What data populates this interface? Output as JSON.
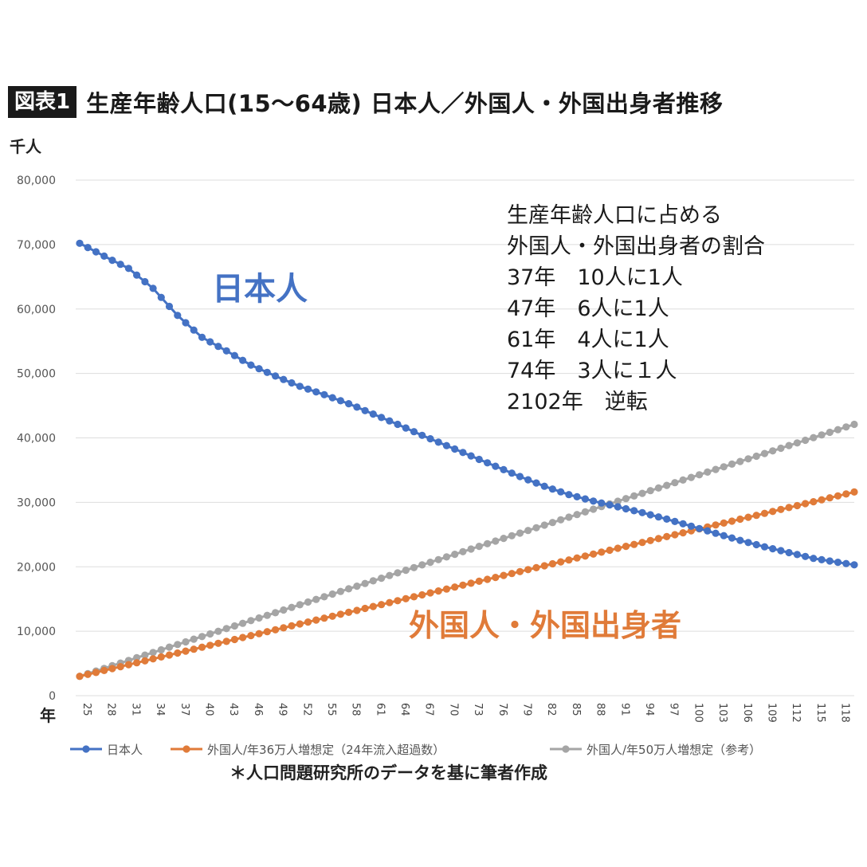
{
  "figure_label": "図表1",
  "title": "生産年齢人口(15〜64歳) 日本人／外国人・外国出身者推移",
  "footnote": "＊人口問題研究所のデータを基に筆者作成",
  "colors": {
    "japanese": "#4472C4",
    "foreign36": "#E07B39",
    "foreign50": "#A5A5A5",
    "grid": "#dddddd"
  },
  "chart_data": {
    "type": "line",
    "ylabel": "千人",
    "xlabel": "年",
    "ylim": [
      0,
      80000
    ],
    "yticks": [
      "0",
      "10,000",
      "20,000",
      "30,000",
      "40,000",
      "50,000",
      "60,000",
      "70,000",
      "80,000"
    ],
    "xlim": [
      25,
      120
    ],
    "xticks": [
      "25",
      "28",
      "31",
      "34",
      "37",
      "40",
      "43",
      "46",
      "49",
      "52",
      "55",
      "58",
      "61",
      "64",
      "67",
      "70",
      "73",
      "76",
      "79",
      "82",
      "85",
      "88",
      "91",
      "94",
      "97",
      "100",
      "103",
      "106",
      "109",
      "112",
      "115",
      "118"
    ],
    "grid": true,
    "legend_position": "bottom",
    "series": [
      {
        "name": "日本人",
        "color": "#4472C4",
        "points": [
          [
            25,
            70200
          ],
          [
            28,
            68200
          ],
          [
            31,
            66300
          ],
          [
            34,
            63200
          ],
          [
            37,
            59000
          ],
          [
            40,
            55600
          ],
          [
            43,
            53500
          ],
          [
            46,
            51300
          ],
          [
            49,
            49600
          ],
          [
            52,
            48000
          ],
          [
            55,
            46700
          ],
          [
            58,
            45300
          ],
          [
            61,
            43700
          ],
          [
            64,
            42100
          ],
          [
            67,
            40400
          ],
          [
            70,
            38800
          ],
          [
            73,
            37200
          ],
          [
            76,
            35600
          ],
          [
            79,
            34000
          ],
          [
            82,
            32500
          ],
          [
            85,
            31200
          ],
          [
            88,
            30200
          ],
          [
            91,
            29300
          ],
          [
            94,
            28400
          ],
          [
            97,
            27400
          ],
          [
            100,
            26300
          ],
          [
            103,
            25200
          ],
          [
            106,
            24100
          ],
          [
            109,
            23100
          ],
          [
            112,
            22200
          ],
          [
            115,
            21300
          ],
          [
            120,
            20300
          ]
        ]
      },
      {
        "name": "外国人/年36万人増想定（24年流入超過数）",
        "color": "#E07B39",
        "points": [
          [
            25,
            3000
          ],
          [
            120,
            31600
          ]
        ]
      },
      {
        "name": "外国人/年50万人増想定（参考）",
        "color": "#A5A5A5",
        "points": [
          [
            25,
            3000
          ],
          [
            120,
            42100
          ]
        ]
      }
    ],
    "annotations": {
      "japanese_label": "日本人",
      "foreign_label": "外国人・外国出身者",
      "ratio_box": [
        "生産年齢人口に占める",
        "外国人・外国出身者の割合",
        "37年　10人に1人",
        "47年　6人に1人",
        "61年　4人に1人",
        "74年　3人に１人",
        "2102年　逆転"
      ]
    }
  }
}
